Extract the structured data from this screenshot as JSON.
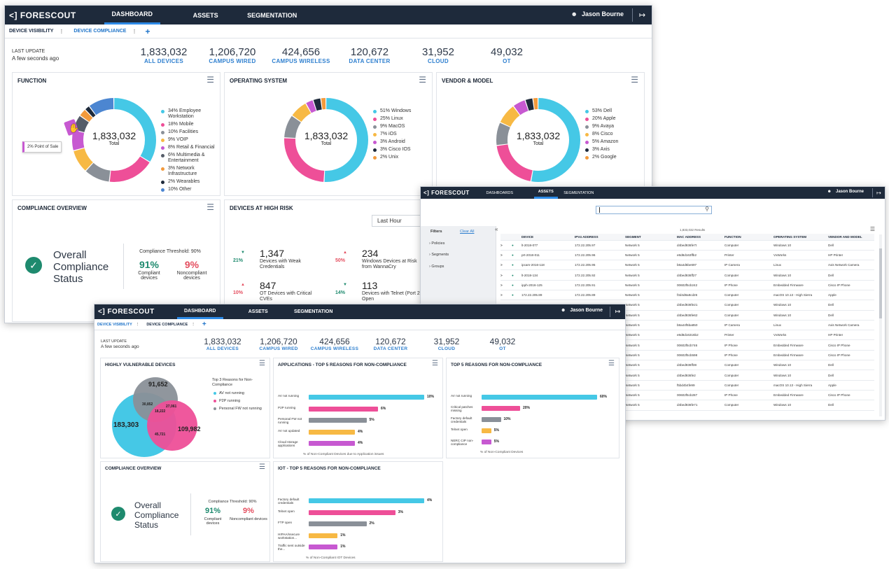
{
  "brand": "FORESCOUT",
  "nav": {
    "dashboard": "DASHBOARD",
    "dashboards": "DASHBOARDS",
    "assets": "ASSETS",
    "segmentation": "SEGMENTATION"
  },
  "user": "Jason Bourne",
  "tabs": {
    "device_visibility": "DEVICE VISIBILITY",
    "device_compliance": "DEVICE COMPLIANCE",
    "add": "+"
  },
  "last_update": {
    "label": "LAST UPDATE",
    "value": "A few seconds ago"
  },
  "stats": [
    {
      "value": "1,833,032",
      "label": "ALL DEVICES"
    },
    {
      "value": "1,206,720",
      "label": "CAMPUS WIRED"
    },
    {
      "value": "424,656",
      "label": "CAMPUS WIRELESS"
    },
    {
      "value": "120,672",
      "label": "DATA CENTER"
    },
    {
      "value": "31,952",
      "label": "CLOUD"
    },
    {
      "value": "49,032",
      "label": "OT"
    }
  ],
  "function": {
    "title": "FUNCTION",
    "total": "1,833,032",
    "total_label": "Total",
    "tooltip": "2% Point of Sale",
    "legend": [
      "34% Employee Workstation",
      "18% Mobile",
      "10% Facilities",
      "9% VOIP",
      "8% Retail & Financial",
      "6% Multimedia & Entertainment",
      "3% Network Infrastructure",
      "2% Wearables",
      "10% Other"
    ]
  },
  "os": {
    "title": "OPERATING SYSTEM",
    "total": "1,833,032",
    "total_label": "Total",
    "legend": [
      "51% Windows",
      "25% Linux",
      "9% MacOS",
      "7% iOS",
      "3% Android",
      "3% Cisco IOS",
      "2% Unix"
    ]
  },
  "vendor": {
    "title": "VENDOR & MODEL",
    "total": "1,833,032",
    "total_label": "Total",
    "legend": [
      "53% Dell",
      "20% Apple",
      "9% Avaya",
      "8% Cisco",
      "5% Amazon",
      "3% Axis",
      "2% Google"
    ]
  },
  "compliance": {
    "title": "COMPLIANCE OVERVIEW",
    "status": "Overall Compliance Status",
    "threshold": "Compliance Threshold: 90%",
    "compliant_pct": "91%",
    "compliant_label": "Compliant devices",
    "noncompliant_pct": "9%",
    "noncompliant_label": "Noncompliant devices"
  },
  "high_risk": {
    "title": "DEVICES AT HIGH RISK",
    "period": "Last Hour",
    "items": [
      {
        "pct": "21%",
        "value": "1,347",
        "label": "Devices with Weak Credentials"
      },
      {
        "pct": "50%",
        "value": "234",
        "label": "Windows Devices at Risk from WannaCry"
      },
      {
        "pct": "10%",
        "value": "847",
        "label": "OT Devices with Critical CVEs"
      },
      {
        "pct": "14%",
        "value": "113",
        "label": "Devices with Telnet (Port 23) Open"
      }
    ]
  },
  "vulnerable": {
    "title": "HIGHLY VULNERABLE DEVICES",
    "values": {
      "top": "91,652",
      "left": "183,303",
      "right": "109,982",
      "tl": "30,852",
      "tr": "27,061",
      "center": "18,222",
      "bottom": "45,721"
    },
    "legend_title": "Top 3 Reasons for Non-Compliance",
    "legend": [
      "AV not running",
      "P2P running",
      "Personal FW not running"
    ]
  },
  "apps": {
    "title": "APPLICATIONS - TOP 5 REASONS FOR NON-COMPLIANCE",
    "footer": "% of Non-Compliant Devices due to Application issues",
    "bars": [
      {
        "label": "AV not running",
        "value": 10,
        "text": "10%"
      },
      {
        "label": "P2P running",
        "value": 6,
        "text": "6%"
      },
      {
        "label": "Personal FW not running",
        "value": 5,
        "text": "5%"
      },
      {
        "label": "AV not updated",
        "value": 4,
        "text": "4%"
      },
      {
        "label": "Cloud storage applications",
        "value": 4,
        "text": "4%"
      }
    ]
  },
  "top5": {
    "title": "TOP 5 REASONS FOR NON-COMPLIANCE",
    "footer": "% of Non-Compliant Devices",
    "bars": [
      {
        "label": "AV not running",
        "value": 60,
        "text": "60%"
      },
      {
        "label": "Critical patches missing",
        "value": 20,
        "text": "20%"
      },
      {
        "label": "Factory default credentials",
        "value": 10,
        "text": "10%"
      },
      {
        "label": "Telnet open",
        "value": 5,
        "text": "5%"
      },
      {
        "label": "NERC CIP non-compliance",
        "value": 5,
        "text": "5%"
      }
    ]
  },
  "iot": {
    "title": "IOT - TOP 5 REASONS FOR NON-COMPLIANCE",
    "footer": "% of Non-Compliant IOT Devices",
    "bars": [
      {
        "label": "Factory default credentials",
        "value": 4,
        "text": "4%"
      },
      {
        "label": "Telnet open",
        "value": 3,
        "text": "3%"
      },
      {
        "label": "FTP open",
        "value": 2,
        "text": "2%"
      },
      {
        "label": "HIPAA/nsecure workstation...",
        "value": 1,
        "text": "1%"
      },
      {
        "label": "Traffic sent outside the...",
        "value": 1,
        "text": "1%"
      }
    ]
  },
  "assets": {
    "filters": "Filters",
    "clear": "Clear All",
    "filter_items": [
      "Policies",
      "Segments",
      "Groups"
    ],
    "results": "1,833,032 Results",
    "columns": [
      "DEVICE",
      "IPV4 ADDRESS",
      "SEGMENT",
      "MAC ADDRESS",
      "FUNCTION",
      "OPERATING SYSTEM",
      "VENDOR AND MODEL"
    ],
    "rows": [
      [
        "lt-2018-077",
        "172.22.205.97",
        "Network 5",
        "d4bed936fe7t",
        "Computer",
        "Windows 10",
        "Dell"
      ],
      [
        "prt-2018-011",
        "172.22.205.96",
        "Network 5",
        "e8d8d163ffb2",
        "Printer",
        "VxWorks",
        "HP Printer"
      ],
      [
        "ipcam-2016-118",
        "172.22.205.95",
        "Network 5",
        "b8a4d5be697",
        "IP Camera",
        "Linux",
        "Axis Network Camera"
      ],
      [
        "lt-2018-134",
        "172.22.205.92",
        "Network 5",
        "d4bed936ff27",
        "Computer",
        "Windows 10",
        "Dell"
      ],
      [
        "ipph-2016-125",
        "172.22.205.91",
        "Network 5",
        "00602f5cb242",
        "IP Phone",
        "Embedded Firmware",
        "Cisco IP Phone"
      ],
      [
        "172.22.205.89",
        "172.22.205.89",
        "Network 5",
        "f3d4d8a8cd26",
        "Computer",
        "macOS 10.13 - High Sierra",
        "Apple"
      ],
      [
        "",
        "",
        "Network 5",
        "d4bed936fe21",
        "Computer",
        "Windows 10",
        "Dell"
      ],
      [
        "",
        "",
        "Network 5",
        "d4bed936fe62",
        "Computer",
        "Windows 10",
        "Dell"
      ],
      [
        "",
        "",
        "Network 5",
        "b8a44f5ba850",
        "IP Camera",
        "Linux",
        "Axis Network Camera"
      ],
      [
        "",
        "",
        "Network 5",
        "e8d8d16316b2",
        "Printer",
        "VxWorks",
        "HP Printer"
      ],
      [
        "",
        "",
        "Network 5",
        "00602f5cb746",
        "IP Phone",
        "Embedded Firmware",
        "Cisco IP Phone"
      ],
      [
        "",
        "",
        "Network 5",
        "00602f5cb598",
        "IP Phone",
        "Embedded Firmware",
        "Cisco IP Phone"
      ],
      [
        "",
        "",
        "Network 5",
        "d4bed936ff38",
        "Computer",
        "Windows 10",
        "Dell"
      ],
      [
        "",
        "",
        "Network 5",
        "d4bed936fe2",
        "Computer",
        "Windows 10",
        "Dell"
      ],
      [
        "",
        "",
        "Network 5",
        "f5bd4b4fe99",
        "Computer",
        "macOS 10.13 - High Sierra",
        "Apple"
      ],
      [
        "",
        "",
        "Network 5",
        "00602f5cb287",
        "IP Phone",
        "Embedded Firmware",
        "Cisco IP Phone"
      ],
      [
        "",
        "",
        "Network 5",
        "d4bed936fe71",
        "Computer",
        "Windows 10",
        "Dell"
      ]
    ]
  },
  "colors": {
    "cyan": "#45c8e6",
    "pink": "#ee4f98",
    "gray": "#8a9098",
    "yellow": "#f7b944",
    "purple": "#c759d1",
    "navy": "#1e2a3b",
    "orange": "#f39a3c",
    "blue": "#4c86d1",
    "green": "#1e8a6e",
    "red": "#e44e5f"
  }
}
